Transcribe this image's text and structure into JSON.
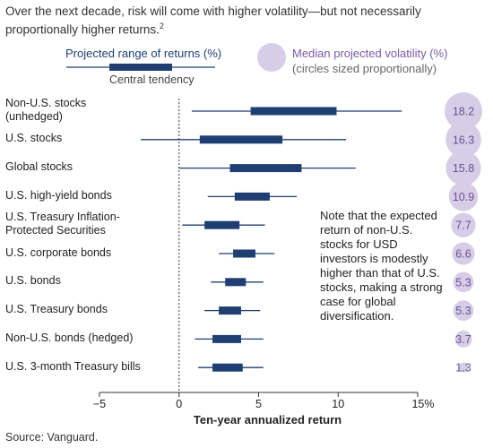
{
  "header": {
    "subtitle": "Over the next decade, risk will come with higher volatility—but not necessarily proportionally higher returns.",
    "footnote_mark": "2"
  },
  "legend": {
    "range_label": "Projected range of returns (%)",
    "central_label": "Central tendency",
    "volatility_label": "Median projected volatility (%)",
    "volatility_sub": "(circles sized proportionally)"
  },
  "note": "Note that the expected return of non-U.S. stocks for USD investors is modestly higher than that of U.S. stocks, making a strong case for global diversification.",
  "source": "Source: Vanguard.",
  "colors": {
    "range": "#1f3f73",
    "circle": "#d8cde6",
    "circle_text": "#6a4f96",
    "axis": "#333333"
  },
  "chart_data": {
    "type": "range",
    "xlabel": "Ten-year annualized return",
    "xlim": [
      -5,
      15
    ],
    "xticks": [
      -5,
      0,
      5,
      10,
      15
    ],
    "xtick_labels": [
      "−5",
      "0",
      "5",
      "10",
      "15%"
    ],
    "zero_line": "dashed",
    "series": [
      {
        "label": [
          "Non-U.S. stocks",
          "(unhedged)"
        ],
        "range": [
          0.8,
          14.0
        ],
        "central": [
          4.5,
          9.9
        ],
        "volatility": 18.2
      },
      {
        "label": [
          "U.S. stocks"
        ],
        "range": [
          -2.4,
          10.5
        ],
        "central": [
          1.3,
          6.5
        ],
        "volatility": 16.3
      },
      {
        "label": [
          "Global stocks"
        ],
        "range": [
          0.0,
          11.1
        ],
        "central": [
          3.2,
          7.7
        ],
        "volatility": 15.8
      },
      {
        "label": [
          "U.S. high-yield bonds"
        ],
        "range": [
          1.8,
          7.4
        ],
        "central": [
          3.5,
          5.7
        ],
        "volatility": 10.9
      },
      {
        "label": [
          "U.S. Treasury Inflation-",
          "Protected Securities"
        ],
        "range": [
          0.2,
          5.4
        ],
        "central": [
          1.6,
          3.8
        ],
        "volatility": 7.7
      },
      {
        "label": [
          "U.S. corporate bonds"
        ],
        "range": [
          2.5,
          6.0
        ],
        "central": [
          3.4,
          4.8
        ],
        "volatility": 6.6
      },
      {
        "label": [
          "U.S. bonds"
        ],
        "range": [
          2.0,
          5.3
        ],
        "central": [
          2.9,
          4.2
        ],
        "volatility": 5.3
      },
      {
        "label": [
          "U.S. Treasury bonds"
        ],
        "range": [
          1.6,
          5.1
        ],
        "central": [
          2.5,
          3.9
        ],
        "volatility": 5.3
      },
      {
        "label": [
          "Non-U.S. bonds (hedged)"
        ],
        "range": [
          1.0,
          5.3
        ],
        "central": [
          2.1,
          3.9
        ],
        "volatility": 3.7
      },
      {
        "label": [
          "U.S. 3-month Treasury bills"
        ],
        "range": [
          1.2,
          5.3
        ],
        "central": [
          2.1,
          4.0
        ],
        "volatility": 1.3
      }
    ]
  }
}
